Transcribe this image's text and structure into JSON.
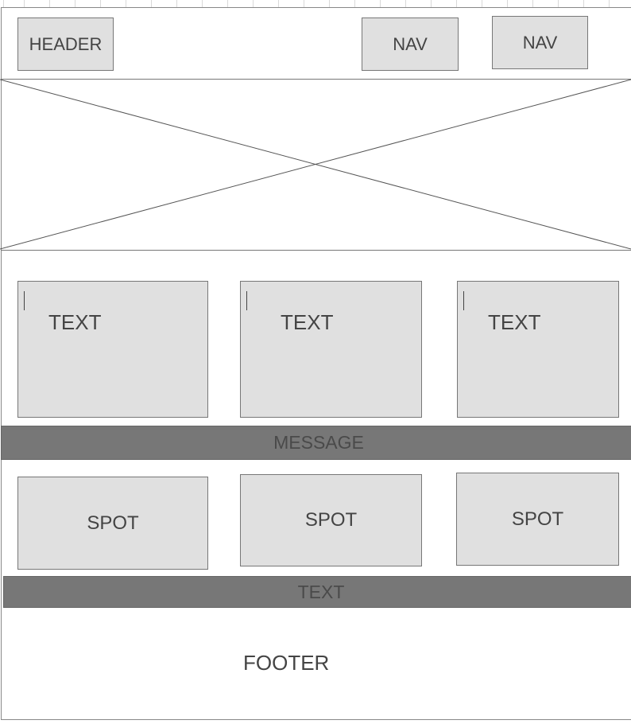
{
  "header": {
    "label": "HEADER"
  },
  "nav": {
    "items": [
      {
        "label": "NAV"
      },
      {
        "label": "NAV"
      }
    ]
  },
  "hero": {
    "type": "image-placeholder"
  },
  "text_boxes": [
    {
      "label": "TEXT"
    },
    {
      "label": "TEXT"
    },
    {
      "label": "TEXT"
    }
  ],
  "message_bar": {
    "label": "MESSAGE"
  },
  "spots": [
    {
      "label": "SPOT"
    },
    {
      "label": "SPOT"
    },
    {
      "label": "SPOT"
    }
  ],
  "text_bar": {
    "label": "TEXT"
  },
  "footer": {
    "label": "FOOTER"
  },
  "colors": {
    "box_fill": "#e0e0e0",
    "bar_fill": "#777777",
    "border": "#777777"
  }
}
